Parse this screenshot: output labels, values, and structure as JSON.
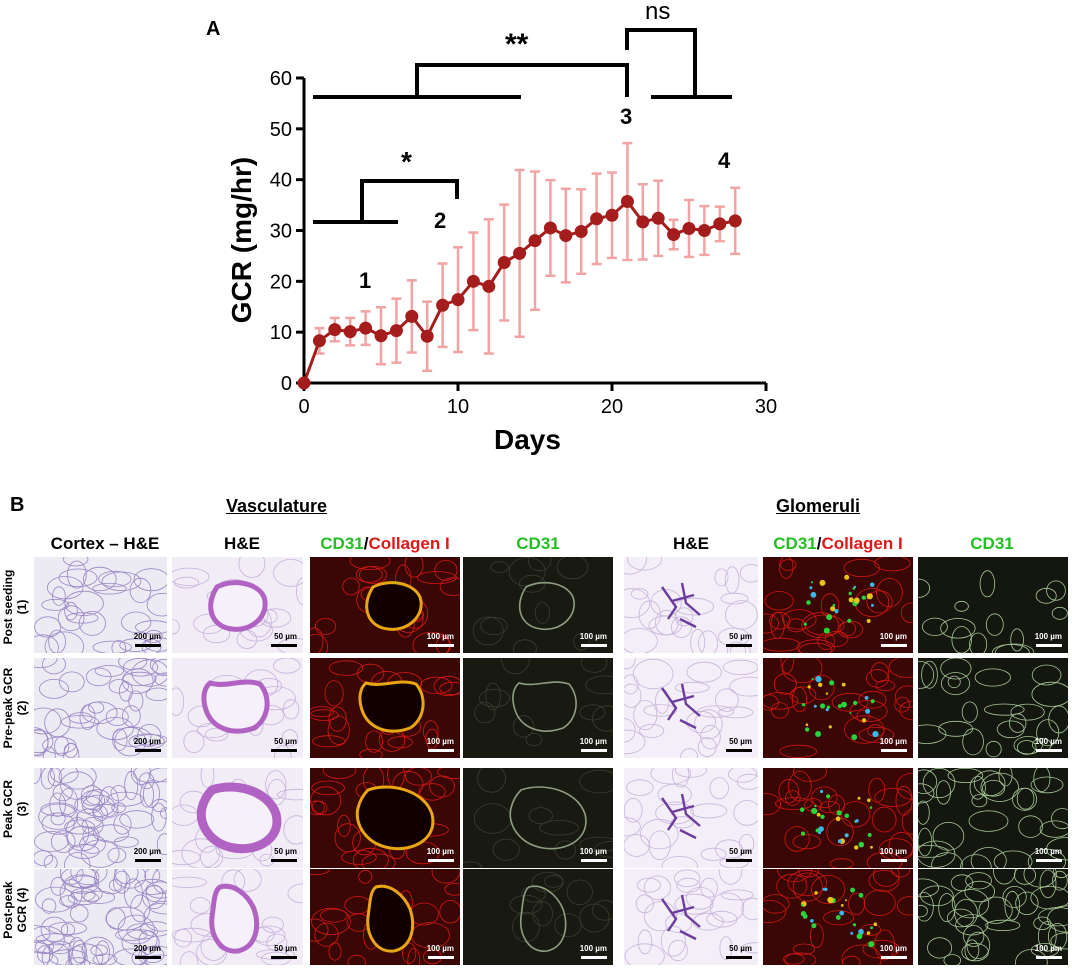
{
  "panel_a": {
    "letter": "A",
    "xlabel": "Days",
    "ylabel": "GCR (mg/hr)",
    "significance": {
      "single_star": "*",
      "double_star": "**",
      "ns": "ns"
    },
    "phase_labels": [
      "1",
      "2",
      "3",
      "4"
    ]
  },
  "chart_data": {
    "type": "line",
    "xlabel": "Days",
    "ylabel": "GCR (mg/hr)",
    "xlim": [
      0,
      30
    ],
    "ylim": [
      0,
      60
    ],
    "xticks": [
      0,
      10,
      20,
      30
    ],
    "yticks": [
      0,
      10,
      20,
      30,
      40,
      50,
      60
    ],
    "grid": false,
    "color": "#a51c1c",
    "error_color": "#f2a3a3",
    "x": [
      0,
      1,
      2,
      3,
      4,
      5,
      6,
      7,
      8,
      9,
      10,
      11,
      12,
      13,
      14,
      15,
      16,
      17,
      18,
      19,
      20,
      21,
      22,
      23,
      24,
      25,
      26,
      27,
      28
    ],
    "y": [
      0,
      8.3,
      10.5,
      10.1,
      10.8,
      9.3,
      10.3,
      13.1,
      9.2,
      15.3,
      16.4,
      20,
      19,
      23.7,
      25.5,
      28,
      30.5,
      29,
      29.8,
      32.3,
      33,
      35.7,
      31.7,
      32.4,
      29.2,
      30.4,
      30,
      31.3,
      31.9
    ],
    "error": [
      0,
      2.5,
      2.3,
      2.7,
      3.3,
      5.6,
      6.3,
      7.1,
      6.8,
      8.2,
      10.3,
      9.6,
      13.2,
      11.4,
      16.4,
      13.6,
      9.4,
      9.2,
      8.3,
      8.9,
      8.4,
      11.5,
      7.4,
      7.4,
      2.9,
      5.6,
      4.8,
      3.4,
      6.5
    ]
  },
  "panel_b": {
    "letter": "B",
    "groups": {
      "vasculature": "Vasculature",
      "glomeruli": "Glomeruli"
    },
    "columns": {
      "cortex": "Cortex – H&E",
      "he": "H&E",
      "cd31": "CD31",
      "slash": "/",
      "collagen": "Collagen I"
    },
    "rows": [
      {
        "line1": "Post seeding",
        "line2": "(1)"
      },
      {
        "line1": "Pre-peak GCR",
        "line2": "(2)"
      },
      {
        "line1": "Peak GCR",
        "line2": "(3)"
      },
      {
        "line1": "Post-peak",
        "line2": "GCR (4)"
      }
    ],
    "scalebars": {
      "s200": "200 µm",
      "s50": "50 µm",
      "s100": "100 µm"
    }
  }
}
